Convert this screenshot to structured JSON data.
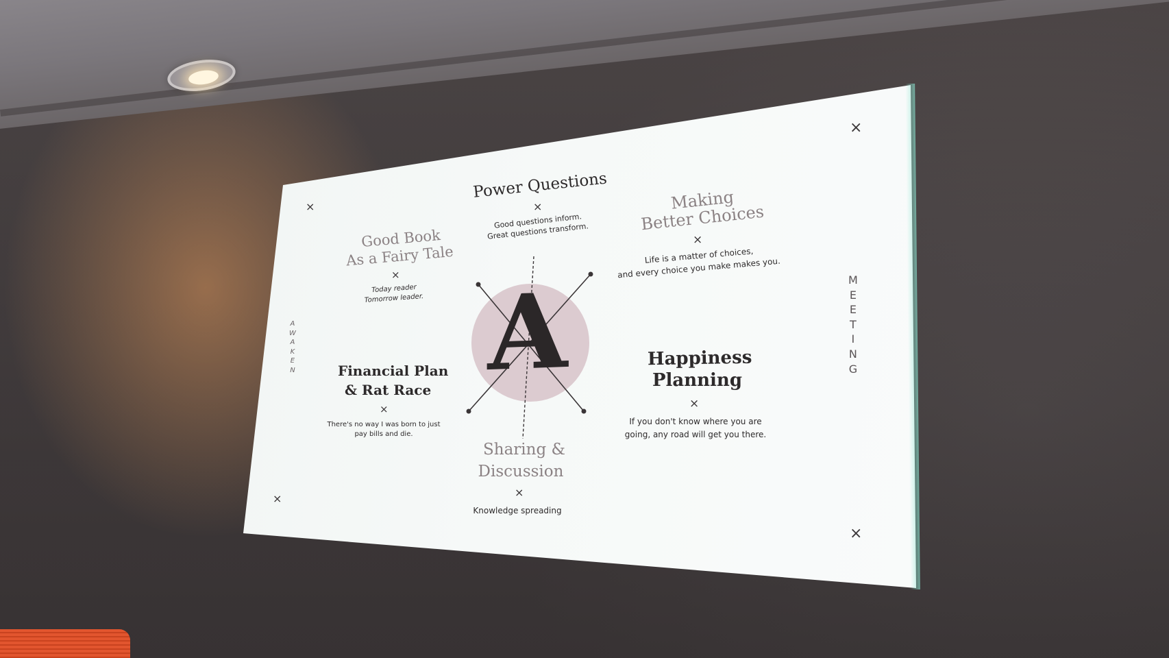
{
  "slide": {
    "power_questions": {
      "title": "Power Questions",
      "line1": "Good questions inform.",
      "line2": "Great questions transform."
    },
    "good_book": {
      "title1": "Good Book",
      "title2": "As a Fairy Tale",
      "line1": "Today reader",
      "line2": "Tomorrow leader."
    },
    "making_choices": {
      "title1": "Making",
      "title2": "Better Choices",
      "line1": "Life is a matter of choices,",
      "line2": "and every choice you make makes you."
    },
    "financial_plan": {
      "title1": "Financial Plan",
      "title2": "& Rat Race",
      "line1": "There's no way I was born to just",
      "line2": "pay bills and die."
    },
    "happiness": {
      "title1": "Happiness",
      "title2": "Planning",
      "line1": "If you don't know where you are",
      "line2": "going, any road will get you there."
    },
    "sharing": {
      "title1": "Sharing &",
      "title2": "Discussion",
      "line1": "Knowledge spreading"
    },
    "center_letter": "A",
    "left_vertical": [
      "A",
      "W",
      "A",
      "K",
      "E",
      "N"
    ],
    "right_vertical": [
      "M",
      "E",
      "E",
      "T",
      "I",
      "N",
      "G"
    ],
    "mark": "×",
    "colors": {
      "circle": "#d9c7cc",
      "text": "#2d2a2b",
      "faded_title": "#8b8284",
      "screen": "#f3f7f6"
    }
  }
}
